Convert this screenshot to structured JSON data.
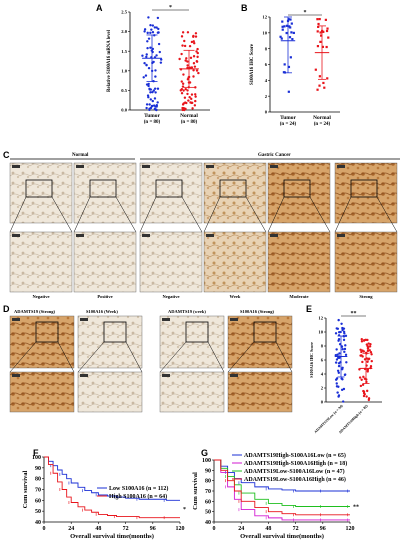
{
  "panel_labels": {
    "a": "A",
    "b": "B",
    "c": "C",
    "d": "D",
    "e": "E",
    "f": "F",
    "g": "G"
  },
  "colors": {
    "blue": "#1a2fd6",
    "red": "#e8141b",
    "green": "#1fbf1f",
    "magenta": "#d21ad2",
    "tissue_light": "#ece3d4",
    "tissue_brown": "#b8752d"
  },
  "chart_data": [
    {
      "id": "A",
      "type": "scatter",
      "ylabel": "Relative S100A16 mRNA level",
      "yticks": [
        "0.0",
        "0.5",
        "1.0",
        "1.5",
        "2.0",
        "2.5"
      ],
      "ylim": [
        0,
        2.5
      ],
      "categories": [
        "Tumor",
        "Normal"
      ],
      "n_labels": [
        "(n = 80)",
        "(n = 80)"
      ],
      "means": [
        1.32,
        1.05
      ],
      "sig": "*"
    },
    {
      "id": "B",
      "type": "scatter",
      "ylabel": "S100A16 IHC Score",
      "yticks": [
        "0",
        "2",
        "4",
        "6",
        "8",
        "10",
        "12"
      ],
      "ylim": [
        0,
        12
      ],
      "categories": [
        "Tumor",
        "Normal"
      ],
      "n_labels": [
        "(n = 24)",
        "(n = 24)"
      ],
      "means": [
        9,
        7.5
      ],
      "sig": "*"
    },
    {
      "id": "E",
      "type": "scatter",
      "ylabel": "S100A16 IHC Score",
      "yticks": [
        "0",
        "2",
        "4",
        "6",
        "8",
        "10",
        "12"
      ],
      "ylim": [
        0,
        12
      ],
      "categories": [
        "ADAMTS19Low (n = 94)",
        "ADAMTS19High (n = 82)"
      ],
      "means": [
        6.5,
        4.8
      ],
      "sig": "**"
    },
    {
      "id": "F",
      "type": "line",
      "ylabel": "Cum survival",
      "xlabel": "Overall survival time(months)",
      "xticks": [
        "0",
        "24",
        "48",
        "72",
        "96",
        "120"
      ],
      "yticks": [
        "40",
        "50",
        "60",
        "70",
        "80",
        "90",
        "100"
      ],
      "xlim": [
        0,
        120
      ],
      "ylim": [
        40,
        100
      ],
      "series": [
        {
          "name": "Low S100A16 (n = 112)",
          "x": [
            0,
            4,
            8,
            12,
            16,
            20,
            24,
            30,
            36,
            42,
            48,
            56,
            64,
            72,
            84,
            96,
            108,
            120
          ],
          "y": [
            100,
            96,
            92,
            88,
            84,
            80,
            76,
            72,
            69,
            67,
            65,
            64,
            63,
            62,
            61,
            61,
            60,
            60
          ]
        },
        {
          "name": "High S100A16 (n = 64)",
          "x": [
            0,
            4,
            8,
            12,
            16,
            20,
            24,
            30,
            36,
            42,
            48,
            56,
            64,
            72,
            84,
            96,
            108,
            120
          ],
          "y": [
            100,
            93,
            85,
            77,
            70,
            63,
            58,
            54,
            51,
            49,
            47,
            46,
            45,
            45,
            44,
            44,
            44,
            44
          ]
        }
      ],
      "sig": "*"
    },
    {
      "id": "G",
      "type": "line",
      "ylabel": "Cum survival",
      "xlabel": "Overall survival time(months)",
      "xticks": [
        "0",
        "24",
        "48",
        "72",
        "96",
        "120"
      ],
      "yticks": [
        "40",
        "50",
        "60",
        "70",
        "80",
        "90",
        "100"
      ],
      "xlim": [
        0,
        120
      ],
      "ylim": [
        40,
        100
      ],
      "series": [
        {
          "name": "ADAMTS19High-S100A16Low (n = 65)",
          "x": [
            0,
            6,
            12,
            18,
            24,
            36,
            48,
            60,
            72,
            84,
            96,
            108,
            120
          ],
          "y": [
            100,
            94,
            88,
            82,
            78,
            74,
            72,
            71,
            70,
            70,
            70,
            70,
            70
          ]
        },
        {
          "name": "ADAMTS19High-S100A16High (n = 18)",
          "x": [
            0,
            6,
            12,
            18,
            24,
            36,
            48,
            60,
            72,
            84,
            96,
            108,
            120
          ],
          "y": [
            100,
            88,
            74,
            62,
            52,
            46,
            44,
            42,
            42,
            42,
            42,
            42,
            42
          ]
        },
        {
          "name": "ADAMTS19Low-S100A16Low (n = 47)",
          "x": [
            0,
            6,
            12,
            18,
            24,
            36,
            48,
            60,
            72,
            84,
            96,
            108,
            120
          ],
          "y": [
            100,
            92,
            84,
            76,
            68,
            62,
            58,
            56,
            55,
            55,
            55,
            55,
            55
          ]
        },
        {
          "name": "ADAMTS19Low-S100A16High (n = 46)",
          "x": [
            0,
            6,
            12,
            18,
            24,
            36,
            48,
            60,
            72,
            84,
            96,
            108,
            120
          ],
          "y": [
            100,
            90,
            80,
            70,
            60,
            54,
            50,
            48,
            47,
            47,
            47,
            47,
            47
          ]
        }
      ],
      "sig": "**"
    }
  ],
  "panel_c": {
    "group_normal": "Normal",
    "group_cancer": "Gastric Cancer",
    "captions": [
      "Negative",
      "Positive",
      "Negative",
      "Week",
      "Moderate",
      "Strong"
    ]
  },
  "panel_d": {
    "top_labels": [
      "ADAMTS19 (Strong)",
      "S100A16 (Week)",
      "ADAMTS19 (week)",
      "S100A16 (Strong)"
    ]
  }
}
